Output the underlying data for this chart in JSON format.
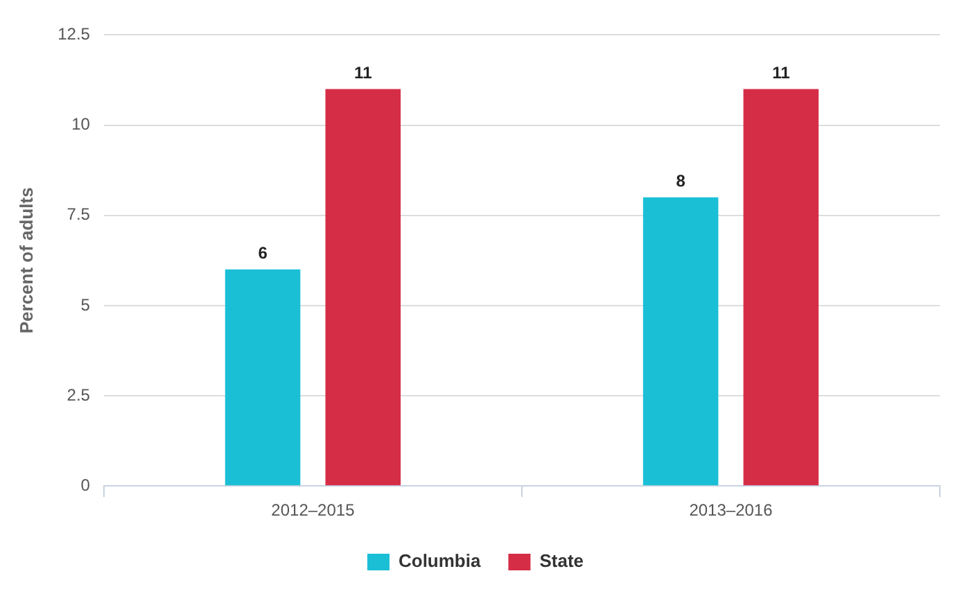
{
  "chart_data": {
    "type": "bar",
    "ylabel": "Percent of adults",
    "categories": [
      "2012–2015",
      "2013–2016"
    ],
    "series": [
      {
        "name": "Columbia",
        "color": "#1abfd6",
        "values": [
          6,
          8
        ]
      },
      {
        "name": "State",
        "color": "#d62d47",
        "values": [
          11,
          11
        ]
      }
    ],
    "ylim": [
      0,
      12.5
    ],
    "yticks": [
      0,
      2.5,
      5,
      7.5,
      10,
      12.5
    ],
    "grid": "y",
    "legend": "bottom",
    "data_labels": true
  }
}
